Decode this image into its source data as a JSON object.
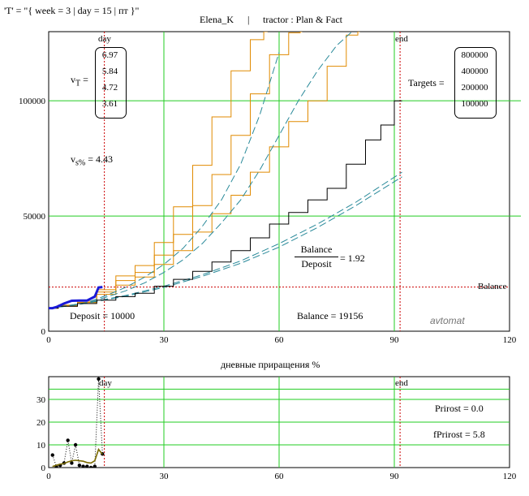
{
  "header": {
    "time_label": "'T' = \"{  week = 3  |  day = 15  |  пт   }\"",
    "user": "Elena_K",
    "separator": "|",
    "mode": "tractor :  Plan & Fact"
  },
  "chart_data": [
    {
      "type": "line",
      "title": "",
      "xlim": [
        0,
        120
      ],
      "ylim": [
        0,
        130000
      ],
      "xticks": [
        0,
        30,
        60,
        90,
        120
      ],
      "yticks": [
        0,
        50000,
        100000
      ],
      "grid": true,
      "vlines": [
        {
          "label": "day",
          "x": 14.5,
          "style": "dotted-red"
        },
        {
          "label": "end",
          "x": 91.5,
          "style": "dotted-red"
        }
      ],
      "hlines": [
        {
          "label": "Balance",
          "y": 19156,
          "style": "dotted-red"
        }
      ],
      "series": [
        {
          "color": "#e08a00",
          "style": "solid",
          "x": [
            0,
            5,
            10,
            15,
            20,
            25,
            30,
            35,
            40,
            45,
            50,
            55,
            57
          ],
          "y": [
            10000,
            11300,
            13000,
            18000,
            24000,
            28500,
            38500,
            54000,
            72000,
            93000,
            113000,
            126500,
            130000
          ]
        },
        {
          "color": "#e08a00",
          "style": "solid",
          "x": [
            0,
            5,
            10,
            15,
            20,
            25,
            30,
            35,
            40,
            45,
            50,
            55,
            60,
            65,
            66
          ],
          "y": [
            10000,
            11000,
            12500,
            17000,
            22000,
            25500,
            33000,
            42000,
            54500,
            68000,
            85000,
            103000,
            120000,
            129500,
            130000
          ]
        },
        {
          "color": "#e08a00",
          "style": "solid",
          "x": [
            0,
            5,
            10,
            15,
            20,
            25,
            30,
            35,
            40,
            45,
            50,
            55,
            60,
            65,
            70,
            75,
            80,
            81
          ],
          "y": [
            10000,
            10800,
            12000,
            16000,
            20000,
            23500,
            29000,
            35000,
            43000,
            51000,
            59000,
            69000,
            80000,
            91000,
            100000,
            115000,
            128500,
            130000
          ]
        },
        {
          "color": "#2a8a9a",
          "style": "dashed",
          "x": [
            0,
            5,
            10,
            15,
            20,
            25,
            30,
            35,
            40,
            45,
            50,
            55,
            60
          ],
          "y": [
            10000,
            11000,
            12500,
            15500,
            19000,
            23500,
            29000,
            36000,
            45500,
            57000,
            72500,
            94000,
            121000
          ]
        },
        {
          "color": "#2a8a9a",
          "style": "dashed",
          "x": [
            0,
            5,
            10,
            15,
            20,
            25,
            30,
            35,
            40,
            45,
            50,
            55,
            60,
            65,
            70,
            75,
            79
          ],
          "y": [
            10000,
            10900,
            12200,
            14800,
            17500,
            21000,
            25500,
            31000,
            38000,
            47000,
            57000,
            70000,
            85000,
            100000,
            113000,
            124000,
            130000
          ]
        },
        {
          "color": "#2a8a9a",
          "style": "dashed",
          "x": [
            0,
            10,
            20,
            30,
            40,
            50,
            60,
            70,
            80,
            92
          ],
          "y": [
            10000,
            12300,
            15500,
            19500,
            24500,
            30500,
            38000,
            46500,
            56000,
            69000
          ]
        },
        {
          "color": "#2a8a9a",
          "style": "dashed",
          "x": [
            0,
            10,
            20,
            30,
            40,
            50,
            60,
            70,
            80,
            92
          ],
          "y": [
            10000,
            12200,
            15200,
            19000,
            23800,
            29500,
            36500,
            45000,
            54500,
            67000
          ]
        },
        {
          "color": "#000000",
          "style": "solid",
          "x": [
            0,
            5,
            10,
            15,
            20,
            25,
            30,
            35,
            40,
            45,
            50,
            55,
            60,
            65,
            70,
            75,
            80,
            85,
            88,
            92
          ],
          "y": [
            10000,
            10800,
            12000,
            13500,
            15000,
            16500,
            19500,
            22500,
            26000,
            30000,
            35000,
            40500,
            46500,
            51500,
            57000,
            62000,
            72500,
            83000,
            89500,
            100000
          ]
        },
        {
          "color": "#1a1ad8",
          "style": "solid-thick",
          "x": [
            0,
            1,
            2,
            4,
            6,
            8,
            10,
            12,
            13,
            14
          ],
          "y": [
            10000,
            10000,
            10500,
            12000,
            13200,
            13300,
            13300,
            15000,
            19000,
            19156
          ]
        }
      ]
    },
    {
      "type": "line",
      "title": "дневные приращения  %",
      "xlim": [
        0,
        120
      ],
      "ylim": [
        0,
        40
      ],
      "xticks": [
        0,
        30,
        60,
        90,
        120
      ],
      "yticks": [
        0,
        10,
        20,
        30
      ],
      "grid": true,
      "vlines": [
        {
          "label": "day",
          "x": 14.5,
          "style": "dotted-red"
        },
        {
          "label": "end",
          "x": 91.5,
          "style": "dotted-red"
        }
      ],
      "series": [
        {
          "color": "#000000",
          "style": "dotted-markers",
          "x": [
            1,
            2,
            3,
            4,
            5,
            6,
            7,
            8,
            9,
            10,
            11,
            12,
            13,
            14
          ],
          "y": [
            5.5,
            0.5,
            1,
            2,
            12,
            2,
            10,
            1,
            0.5,
            0.5,
            0,
            0.5,
            39,
            6
          ]
        },
        {
          "color": "#7a6a00",
          "style": "solid",
          "x": [
            1,
            2,
            3,
            4,
            5,
            6,
            7,
            8,
            9,
            10,
            11,
            12,
            13,
            14
          ],
          "y": [
            0.5,
            1,
            1.5,
            1.8,
            2.5,
            3,
            3.2,
            3,
            2.8,
            2.2,
            2,
            3,
            8,
            5.8
          ]
        }
      ]
    }
  ],
  "annotations": {
    "vt_label": "v",
    "vt_sub": "T",
    "vt_values": [
      "6.97",
      "5.84",
      "4.72",
      "3.61"
    ],
    "vs_label": "v",
    "vs_sub": "s%",
    "vs_value": "= 4.43",
    "targets_label": "Targets =",
    "targets_values": [
      "800000",
      "400000",
      "200000",
      "100000"
    ],
    "frac_num": "Balance",
    "frac_den": "Deposit",
    "frac_value": "= 1.92",
    "deposit_text": "Deposit = 10000",
    "balance_text": "Balance = 19156",
    "balance_marker": "Balance",
    "watermark": "avtomat",
    "day_label": "day",
    "end_label": "end",
    "priroste_text": "Prirost = 0.0",
    "fpriroste_text": "fPrirost = 5.8",
    "eq": "="
  }
}
